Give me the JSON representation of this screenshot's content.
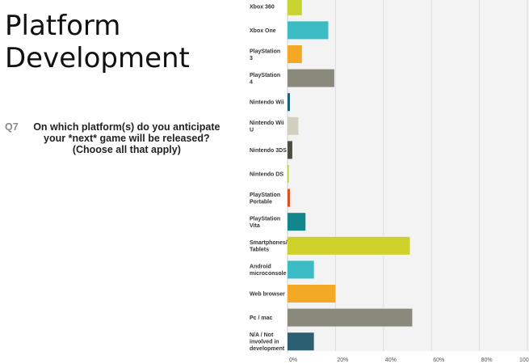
{
  "slide": {
    "title_line1": "Platform",
    "title_line2": "Development",
    "question_number": "Q7",
    "question_text": "On which platform(s) do you anticipate your *next* game will be released? (Choose all that apply)"
  },
  "chart_data": {
    "type": "bar",
    "orientation": "horizontal",
    "categories": [
      "Xbox 360",
      "Xbox One",
      "PlayStation 3",
      "PlayStation 4",
      "Nintendo Wii",
      "Nintendo Wii U",
      "Nintendo 3DS",
      "Nintendo DS",
      "PlayStation Portable",
      "PlayStation Vita",
      "Smartphones/ Tablets",
      "Android microconsole",
      "Web browser",
      "Pc / mac",
      "N/A / Not involved in development"
    ],
    "values": [
      6,
      17,
      6,
      19.5,
      1,
      4.5,
      2,
      0.5,
      1,
      7.5,
      51,
      11,
      20,
      52,
      11
    ],
    "bar_colors": [
      "#c8d42f",
      "#3bbcc4",
      "#f4a926",
      "#8a8a7c",
      "#1f5f78",
      "#d1cfbf",
      "#4d4e42",
      "#bccb3a",
      "#d94f25",
      "#12868a",
      "#cdd12a",
      "#3bbcc4",
      "#f4a926",
      "#8a8a7c",
      "#2d5f73"
    ],
    "xlim": [
      0,
      100
    ],
    "x_ticks": [
      "0%",
      "20%",
      "40%",
      "60%",
      "80%",
      "100%"
    ],
    "grid": true,
    "legend": "none"
  }
}
